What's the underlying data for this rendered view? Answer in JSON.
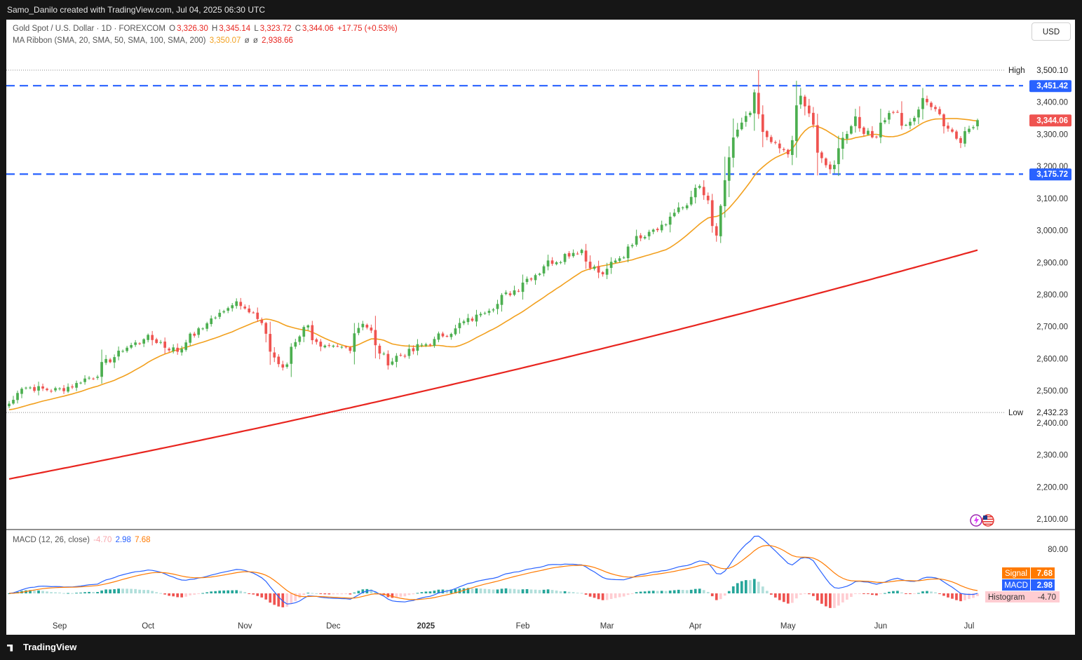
{
  "header": {
    "attribution": "Samo_Danilo created with TradingView.com, Jul 04, 2025 06:30 UTC"
  },
  "legend": {
    "symbol": "Gold Spot / U.S. Dollar · 1D · FOREXCOM",
    "o_label": "O",
    "o": "3,326.30",
    "h_label": "H",
    "h": "3,345.14",
    "l_label": "L",
    "l": "3,323.72",
    "c_label": "C",
    "c": "3,344.06",
    "change": "+17.75 (+0.53%)",
    "ma_label": "MA Ribbon (SMA, 20, SMA, 50, SMA, 100, SMA, 200)",
    "ma20": "3,350.07",
    "ma_sep1": "ø",
    "ma_sep2": "ø",
    "ma200": "2,938.66"
  },
  "currency_button": "USD",
  "macd_legend": {
    "label": "MACD (12, 26, close)",
    "hist": "-4.70",
    "macd": "2.98",
    "signal": "7.68"
  },
  "macd_tags": {
    "signal_label": "Signal",
    "signal_value": "7.68",
    "macd_label": "MACD",
    "macd_value": "2.98",
    "hist_label": "Histogram",
    "hist_value": "-4.70"
  },
  "price_axis": {
    "ticks": [
      "3,400.00",
      "3,300.00",
      "3,200.00",
      "3,100.00",
      "3,000.00",
      "2,900.00",
      "2,800.00",
      "2,700.00",
      "2,600.00",
      "2,500.00",
      "2,400.00",
      "2,300.00",
      "2,200.00",
      "2,100.00"
    ],
    "high_label": "High",
    "high_value": "3,500.10",
    "low_label": "Low",
    "low_value": "2,432.23",
    "resistance_value": "3,451.42",
    "support_value": "3,175.72",
    "last_price": "3,344.06"
  },
  "macd_axis": {
    "ticks": [
      "80.00"
    ]
  },
  "time_axis": {
    "labels": [
      "Sep",
      "Oct",
      "Nov",
      "Dec",
      "2025",
      "Feb",
      "Mar",
      "Apr",
      "May",
      "Jun",
      "Jul"
    ]
  },
  "footer": {
    "brand": "TradingView"
  },
  "colors": {
    "up": "#4caf50",
    "down": "#ef5350",
    "sma20": "#f2a01e",
    "sma200": "#e8251f",
    "level": "#2962ff",
    "macd": "#2962ff",
    "signal": "#ff7a00"
  },
  "chart_data": {
    "type": "candlestick",
    "symbol": "Gold Spot / U.S. Dollar",
    "timeframe": "1D",
    "y_range": [
      2080,
      3545
    ],
    "levels": {
      "resistance": 3451.42,
      "support": 3175.72,
      "high": 3500.1,
      "low": 2432.23
    },
    "anchors": [
      {
        "date": "2024-08-15",
        "close": 2460
      },
      {
        "date": "2024-08-20",
        "close": 2512
      },
      {
        "date": "2024-09-01",
        "close": 2500
      },
      {
        "date": "2024-09-12",
        "close": 2545
      },
      {
        "date": "2024-09-20",
        "close": 2615
      },
      {
        "date": "2024-09-30",
        "close": 2668
      },
      {
        "date": "2024-10-10",
        "close": 2625
      },
      {
        "date": "2024-10-18",
        "close": 2695
      },
      {
        "date": "2024-10-30",
        "close": 2780
      },
      {
        "date": "2024-11-05",
        "close": 2740
      },
      {
        "date": "2024-11-14",
        "close": 2565
      },
      {
        "date": "2024-11-22",
        "close": 2712
      },
      {
        "date": "2024-11-27",
        "close": 2630
      },
      {
        "date": "2024-12-06",
        "close": 2635
      },
      {
        "date": "2024-12-11",
        "close": 2715
      },
      {
        "date": "2024-12-19",
        "close": 2590
      },
      {
        "date": "2025-01-02",
        "close": 2650
      },
      {
        "date": "2025-01-10",
        "close": 2690
      },
      {
        "date": "2025-01-24",
        "close": 2770
      },
      {
        "date": "2025-02-11",
        "close": 2900
      },
      {
        "date": "2025-02-21",
        "close": 2940
      },
      {
        "date": "2025-02-28",
        "close": 2858
      },
      {
        "date": "2025-03-06",
        "close": 2910
      },
      {
        "date": "2025-03-13",
        "close": 2985
      },
      {
        "date": "2025-03-21",
        "close": 3020
      },
      {
        "date": "2025-03-28",
        "close": 3080
      },
      {
        "date": "2025-04-02",
        "close": 3135
      },
      {
        "date": "2025-04-08",
        "close": 2985
      },
      {
        "date": "2025-04-11",
        "close": 3230
      },
      {
        "date": "2025-04-16",
        "close": 3330
      },
      {
        "date": "2025-04-21",
        "close": 3420
      },
      {
        "date": "2025-04-23",
        "close": 3300
      },
      {
        "date": "2025-05-01",
        "close": 3240
      },
      {
        "date": "2025-05-06",
        "close": 3420
      },
      {
        "date": "2025-05-09",
        "close": 3325
      },
      {
        "date": "2025-05-15",
        "close": 3180
      },
      {
        "date": "2025-05-20",
        "close": 3285
      },
      {
        "date": "2025-05-23",
        "close": 3355
      },
      {
        "date": "2025-05-29",
        "close": 3290
      },
      {
        "date": "2025-06-05",
        "close": 3375
      },
      {
        "date": "2025-06-10",
        "close": 3320
      },
      {
        "date": "2025-06-16",
        "close": 3420
      },
      {
        "date": "2025-06-19",
        "close": 3370
      },
      {
        "date": "2025-06-24",
        "close": 3325
      },
      {
        "date": "2025-06-27",
        "close": 3275
      },
      {
        "date": "2025-07-03",
        "close": 3344
      }
    ],
    "series": [
      {
        "name": "SMA 20",
        "latest": 3350.07
      },
      {
        "name": "SMA 200",
        "latest": 2938.66
      }
    ],
    "macd": {
      "params": "12, 26, close",
      "macd": 2.98,
      "signal": 7.68,
      "histogram": -4.7
    }
  }
}
